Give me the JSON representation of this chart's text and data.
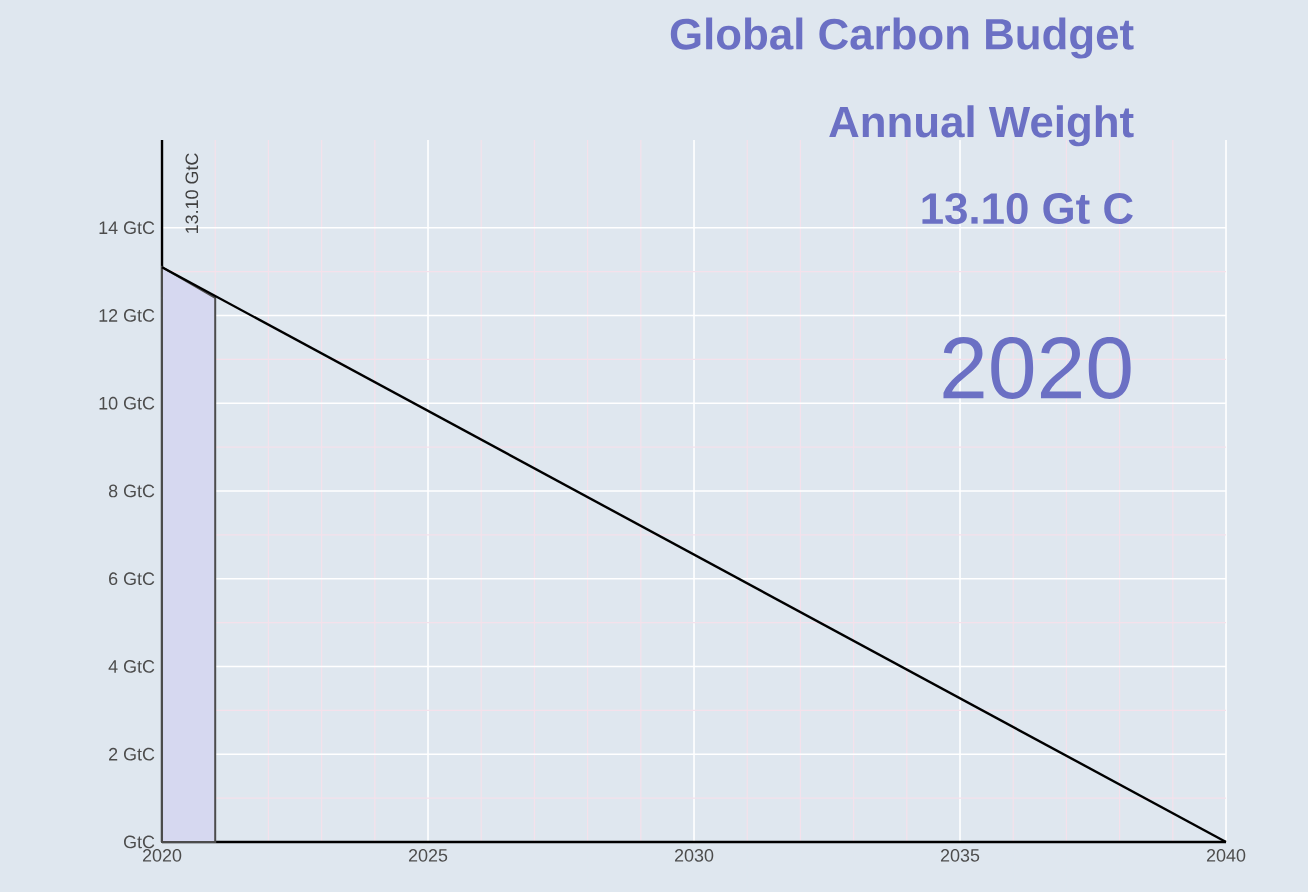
{
  "chart_data": {
    "type": "line",
    "title": "Global Carbon Budget",
    "subtitle": "Annual Weight",
    "annotations": [
      "13.10 GtC",
      "13.10 Gt C",
      "2020"
    ],
    "series": [
      {
        "type": "area",
        "color": "#d6d8f0",
        "x": [
          2020,
          2021
        ],
        "values": [
          13.1,
          12.4
        ]
      },
      {
        "color": "#000000",
        "x": [
          2020,
          2040
        ],
        "values": [
          13.1,
          0
        ]
      }
    ],
    "xlim": [
      2020,
      2040
    ],
    "xticks": [
      2020,
      2025,
      2030,
      2035,
      2040
    ],
    "ylim": [
      0,
      16
    ],
    "yticks": [
      {
        "value": 0,
        "label": "GtC"
      },
      {
        "value": 2,
        "label": "2 GtC"
      },
      {
        "value": 4,
        "label": "4 GtC"
      },
      {
        "value": 6,
        "label": "6 GtC"
      },
      {
        "value": 8,
        "label": "8 GtC"
      },
      {
        "value": 10,
        "label": "10 GtC"
      },
      {
        "value": 12,
        "label": "12 GtC"
      },
      {
        "value": 14,
        "label": "14 GtC"
      }
    ],
    "grid": true,
    "marker": "none",
    "line_style": "solid"
  }
}
